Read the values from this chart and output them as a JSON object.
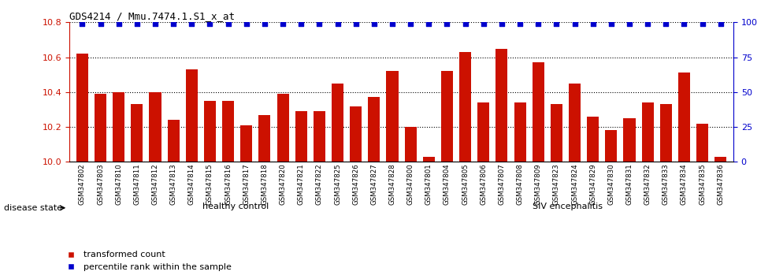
{
  "title": "GDS4214 / Mmu.7474.1.S1_x_at",
  "samples": [
    "GSM347802",
    "GSM347803",
    "GSM347810",
    "GSM347811",
    "GSM347812",
    "GSM347813",
    "GSM347814",
    "GSM347815",
    "GSM347816",
    "GSM347817",
    "GSM347818",
    "GSM347820",
    "GSM347821",
    "GSM347822",
    "GSM347825",
    "GSM347826",
    "GSM347827",
    "GSM347828",
    "GSM347800",
    "GSM347801",
    "GSM347804",
    "GSM347805",
    "GSM347806",
    "GSM347807",
    "GSM347808",
    "GSM347809",
    "GSM347823",
    "GSM347824",
    "GSM347829",
    "GSM347830",
    "GSM347831",
    "GSM347832",
    "GSM347833",
    "GSM347834",
    "GSM347835",
    "GSM347836"
  ],
  "values": [
    10.62,
    10.39,
    10.4,
    10.33,
    10.4,
    10.24,
    10.53,
    10.35,
    10.35,
    10.21,
    10.27,
    10.39,
    10.29,
    10.29,
    10.45,
    10.32,
    10.37,
    10.52,
    10.2,
    10.03,
    10.52,
    10.63,
    10.34,
    10.65,
    10.34,
    10.57,
    10.33,
    10.45,
    10.26,
    10.18,
    10.25,
    10.34,
    10.33,
    10.51,
    10.22,
    10.03
  ],
  "bar_color": "#cc1100",
  "dot_color": "#0000cc",
  "healthy_count": 18,
  "healthy_label": "healthy control",
  "siv_label": "SIV encephalitis",
  "healthy_color": "#ccffcc",
  "siv_color": "#55bb55",
  "ylim_left": [
    10.0,
    10.8
  ],
  "ylim_right": [
    0,
    100
  ],
  "yticks_left": [
    10.0,
    10.2,
    10.4,
    10.6,
    10.8
  ],
  "yticks_right": [
    0,
    25,
    50,
    75,
    100
  ],
  "legend_transformed": "transformed count",
  "legend_percentile": "percentile rank within the sample",
  "disease_state_label": "disease state",
  "background_color": "#ffffff",
  "tick_bg_color": "#d8d8d8"
}
